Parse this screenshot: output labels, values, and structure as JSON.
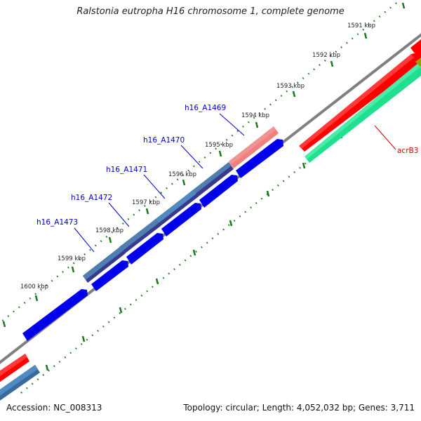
{
  "title": "Ralstonia eutropha H16 chromosome 1, complete genome",
  "footer": {
    "accession": "Accession: NC_008313",
    "summary": "Topology: circular; Length: 4,052,032 bp; Genes: 3,711"
  },
  "ticks": [
    {
      "label": "1591 kbp"
    },
    {
      "label": "1592 kbp"
    },
    {
      "label": "1593 kbp"
    },
    {
      "label": "1594 kbp"
    },
    {
      "label": "1595 kbp"
    },
    {
      "label": "1596 kbp"
    },
    {
      "label": "1597 kbp"
    },
    {
      "label": "1598 kbp"
    },
    {
      "label": "1599 kbp"
    },
    {
      "label": "1600 kbp"
    }
  ],
  "gene_labels": [
    {
      "label": "h16_A1469",
      "color": "#0000cc"
    },
    {
      "label": "h16_A1470",
      "color": "#0000cc"
    },
    {
      "label": "h16_A1471",
      "color": "#0000cc"
    },
    {
      "label": "h16_A1472",
      "color": "#0000cc"
    },
    {
      "label": "h16_A1473",
      "color": "#0000cc"
    },
    {
      "label": "acrB3",
      "color": "#dd0000"
    }
  ],
  "colors": {
    "backbone": "#808080",
    "tick": "#1a7a1a",
    "cds_blue": "#0000ee",
    "gene_steel": "#4682b4",
    "gene_navy": "#3a3a8c",
    "gene_red": "#ff0000",
    "gene_pink": "#f08080",
    "gene_green": "#20e090",
    "gene_olive": "#9aa000"
  }
}
